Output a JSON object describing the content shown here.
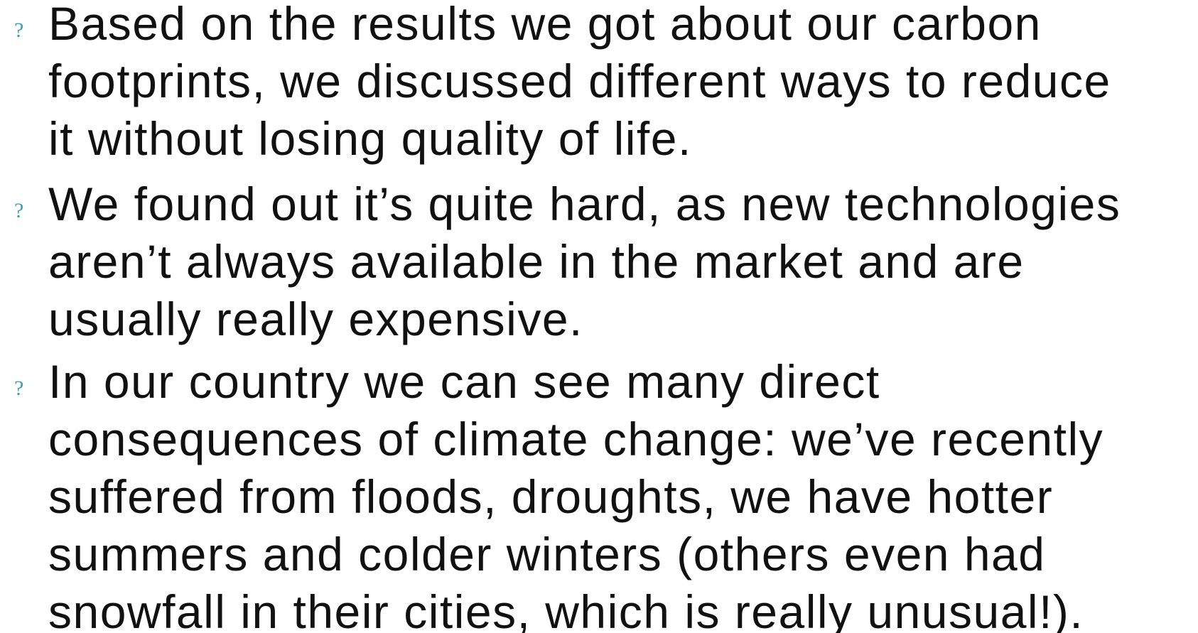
{
  "bullet_marker": "?",
  "bullets": [
    {
      "lines": [
        "Based on the results we got about our carbon",
        "footprints, we discussed different ways to reduce",
        "it without losing quality of life."
      ]
    },
    {
      "lines": [
        "We found out it’s quite hard, as new technologies",
        "aren’t always available in the market and are",
        "usually really expensive."
      ]
    },
    {
      "lines": [
        "In our country we can see many direct",
        "consequences of climate change: we’ve recently",
        "suffered from floods, droughts, we have hotter",
        "summers and colder winters (others even had",
        "snowfall in their cities, which is really unusual!)."
      ]
    }
  ]
}
